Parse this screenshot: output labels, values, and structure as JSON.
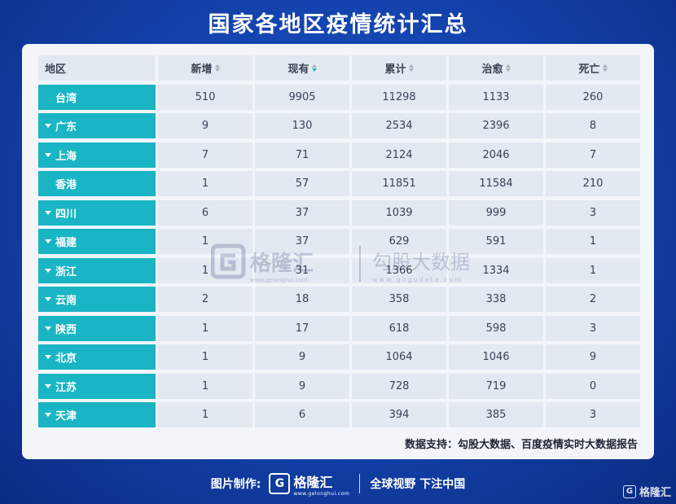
{
  "title": "国家各地区疫情统计汇总",
  "table": {
    "columns": [
      "地区",
      "新增",
      "现有",
      "累计",
      "治愈",
      "死亡"
    ],
    "rows": [
      {
        "region": "台湾",
        "expandable": false,
        "values": [
          "510",
          "9905",
          "11298",
          "1133",
          "260"
        ]
      },
      {
        "region": "广东",
        "expandable": true,
        "values": [
          "9",
          "130",
          "2534",
          "2396",
          "8"
        ]
      },
      {
        "region": "上海",
        "expandable": true,
        "values": [
          "7",
          "71",
          "2124",
          "2046",
          "7"
        ]
      },
      {
        "region": "香港",
        "expandable": false,
        "values": [
          "1",
          "57",
          "11851",
          "11584",
          "210"
        ]
      },
      {
        "region": "四川",
        "expandable": true,
        "values": [
          "6",
          "37",
          "1039",
          "999",
          "3"
        ]
      },
      {
        "region": "福建",
        "expandable": true,
        "values": [
          "1",
          "37",
          "629",
          "591",
          "1"
        ]
      },
      {
        "region": "浙江",
        "expandable": true,
        "values": [
          "1",
          "31",
          "1366",
          "1334",
          "1"
        ]
      },
      {
        "region": "云南",
        "expandable": true,
        "values": [
          "2",
          "18",
          "358",
          "338",
          "2"
        ]
      },
      {
        "region": "陕西",
        "expandable": true,
        "values": [
          "1",
          "17",
          "618",
          "598",
          "3"
        ]
      },
      {
        "region": "北京",
        "expandable": true,
        "values": [
          "1",
          "9",
          "1064",
          "1046",
          "9"
        ]
      },
      {
        "region": "江苏",
        "expandable": true,
        "values": [
          "1",
          "9",
          "728",
          "719",
          "0"
        ]
      },
      {
        "region": "天津",
        "expandable": true,
        "values": [
          "1",
          "6",
          "394",
          "385",
          "3"
        ]
      }
    ]
  },
  "source": "数据支持：勾股大数据、百度疫情实时大数据报告",
  "watermark": {
    "brand": "格隆汇",
    "brand_url": "www.gelonghui.com",
    "data_brand": "勾股大数据",
    "data_url": "www.gogudata.com"
  },
  "footer": {
    "made_by": "图片制作:",
    "logo_letter": "G",
    "brand": "格隆汇",
    "brand_url": "www.gelonghui.com",
    "slogan": "全球视野 下注中国"
  },
  "corner_brand": "格隆汇",
  "colors": {
    "background": "#1240a8",
    "accent": "#19b5c4",
    "card": "#f2f6fa",
    "cell": "#e3e9f1"
  }
}
